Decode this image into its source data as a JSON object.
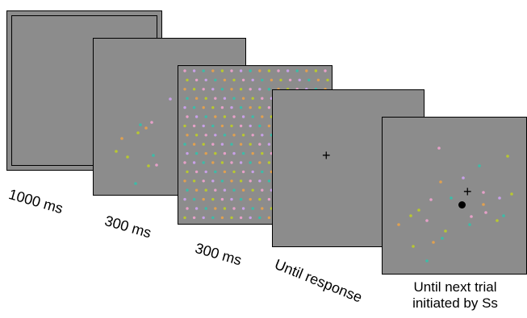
{
  "frames": [
    {
      "id": "frame1",
      "label": "1000 ms"
    },
    {
      "id": "frame2",
      "label": "300 ms"
    },
    {
      "id": "frame3",
      "label": "300 ms"
    },
    {
      "id": "frame4",
      "label": "Until response",
      "fixation": "+"
    },
    {
      "id": "frame5",
      "label_lines": [
        "Until next trial",
        "initiated by Ss"
      ],
      "fixation": "+"
    }
  ],
  "colors": {
    "background": "#8c8c8c",
    "dot_palette": [
      "#e6a0c8",
      "#3cbca8",
      "#b8c830",
      "#c8a0e8",
      "#e0a050"
    ]
  }
}
